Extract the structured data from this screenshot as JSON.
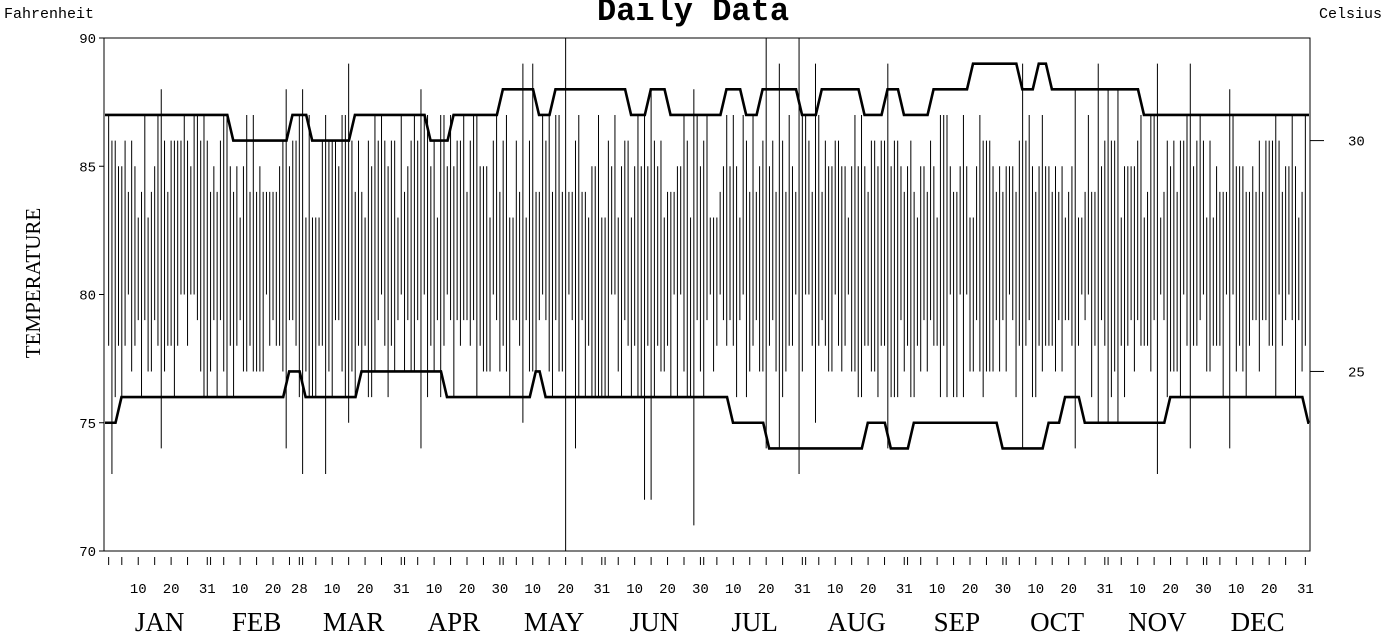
{
  "chart_data": {
    "type": "line",
    "title": "Daily Data",
    "left_unit_label": "Fahrenheit",
    "right_unit_label": "Celsius",
    "ylabel": "TEMPERATURE",
    "ylim": [
      70,
      90
    ],
    "y_ticks": [
      70,
      75,
      80,
      85,
      90
    ],
    "y_tick_labels": [
      "70",
      "75",
      "80",
      "85",
      "90"
    ],
    "y2_ticks_celsius": [
      25,
      30
    ],
    "y2_tick_labels": [
      "25",
      "30"
    ],
    "grid": false,
    "months": [
      "JAN",
      "FEB",
      "MAR",
      "APR",
      "MAY",
      "JUN",
      "JUL",
      "AUG",
      "SEP",
      "OCT",
      "NOV",
      "DEC"
    ],
    "day_tick_labels": [
      [
        "10",
        "20",
        "31"
      ],
      [
        "10",
        "20",
        "28"
      ],
      [
        "10",
        "20",
        "31"
      ],
      [
        "10",
        "20",
        "30"
      ],
      [
        "10",
        "20",
        "31"
      ],
      [
        "10",
        "20",
        "30"
      ],
      [
        "10",
        "20",
        "31"
      ],
      [
        "10",
        "20",
        "31"
      ],
      [
        "10",
        "20",
        "30"
      ],
      [
        "10",
        "20",
        "31"
      ],
      [
        "10",
        "20",
        "30"
      ],
      [
        "10",
        "20",
        "31"
      ]
    ],
    "series": [
      {
        "name": "",
        "kind": "normal_high_step",
        "points": [
          [
            1,
            87
          ],
          [
            38,
            86
          ],
          [
            56,
            87
          ],
          [
            62,
            86
          ],
          [
            75,
            87
          ],
          [
            98,
            86
          ],
          [
            105,
            87
          ],
          [
            120,
            88
          ],
          [
            131,
            87
          ],
          [
            136,
            88
          ],
          [
            159,
            87
          ],
          [
            165,
            88
          ],
          [
            171,
            87
          ],
          [
            188,
            88
          ],
          [
            194,
            87
          ],
          [
            199,
            88
          ],
          [
            211,
            87
          ],
          [
            217,
            88
          ],
          [
            230,
            87
          ],
          [
            237,
            88
          ],
          [
            242,
            87
          ],
          [
            251,
            88
          ],
          [
            263,
            89
          ],
          [
            278,
            88
          ],
          [
            283,
            89
          ],
          [
            287,
            88
          ],
          [
            315,
            87
          ],
          [
            365,
            87
          ]
        ]
      },
      {
        "name": "",
        "kind": "normal_low_step",
        "points": [
          [
            1,
            75
          ],
          [
            4,
            76
          ],
          [
            55,
            77
          ],
          [
            60,
            76
          ],
          [
            77,
            77
          ],
          [
            103,
            76
          ],
          [
            130,
            77
          ],
          [
            133,
            76
          ],
          [
            190,
            75
          ],
          [
            201,
            74
          ],
          [
            231,
            75
          ],
          [
            238,
            74
          ],
          [
            245,
            75
          ],
          [
            272,
            74
          ],
          [
            286,
            75
          ],
          [
            291,
            76
          ],
          [
            297,
            75
          ],
          [
            323,
            76
          ],
          [
            365,
            75
          ]
        ]
      },
      {
        "name": "",
        "kind": "daily_range_bars",
        "note": "daily high-low vertical bars; days 1-365",
        "mid": 81,
        "spread": 4.5,
        "outliers": [
          [
            2,
            73,
            86
          ],
          [
            17,
            74,
            88
          ],
          [
            55,
            74,
            88
          ],
          [
            60,
            73,
            88
          ],
          [
            67,
            73,
            87
          ],
          [
            74,
            75,
            89
          ],
          [
            96,
            74,
            88
          ],
          [
            127,
            75,
            89
          ],
          [
            130,
            77,
            89
          ],
          [
            140,
            70,
            90
          ],
          [
            143,
            74,
            86
          ],
          [
            164,
            72,
            87
          ],
          [
            166,
            72,
            88
          ],
          [
            179,
            71,
            88
          ],
          [
            201,
            74,
            90
          ],
          [
            205,
            74,
            89
          ],
          [
            211,
            73,
            90
          ],
          [
            216,
            75,
            89
          ],
          [
            238,
            74,
            89
          ],
          [
            279,
            74,
            89
          ],
          [
            295,
            74,
            88
          ],
          [
            302,
            75,
            89
          ],
          [
            305,
            75,
            88
          ],
          [
            308,
            75,
            88
          ],
          [
            320,
            73,
            89
          ],
          [
            330,
            74,
            89
          ],
          [
            342,
            74,
            88
          ],
          [
            356,
            76,
            87
          ]
        ]
      }
    ]
  }
}
